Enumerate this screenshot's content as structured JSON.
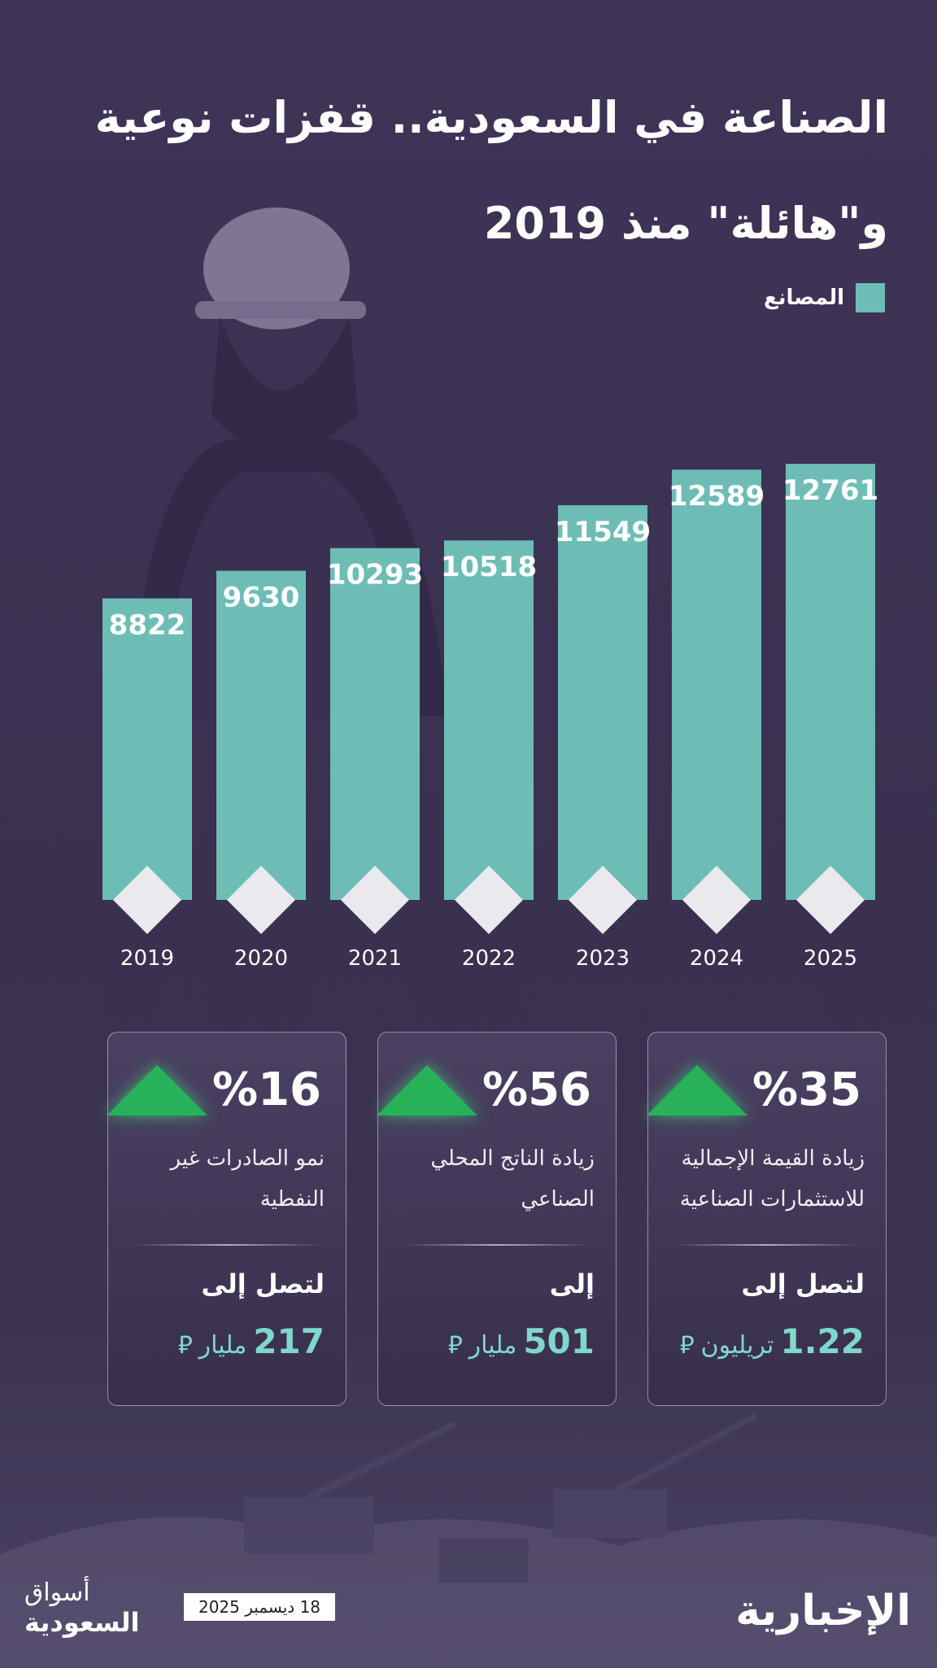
{
  "title_line1": "الصناعة في السعودية.. قفزات نوعية",
  "title_line2": "و\"هائلة\" منذ 2019",
  "legend_label": "المصانع",
  "colors": {
    "bar": "#6dbdb6",
    "background": "#3c3352",
    "accent_green": "#27b25a",
    "amount_text": "#7fd8cb"
  },
  "chart_data": {
    "type": "bar",
    "categories": [
      "2019",
      "2020",
      "2021",
      "2022",
      "2023",
      "2024",
      "2025"
    ],
    "series": [
      {
        "name": "المصانع",
        "values": [
          8822,
          9630,
          10293,
          10518,
          11549,
          12589,
          12761
        ]
      }
    ],
    "title": "الصناعة في السعودية.. قفزات نوعية و\"هائلة\" منذ 2019",
    "xlabel": "",
    "ylabel": "",
    "ylim": [
      0,
      12761
    ],
    "grid": false,
    "legend_position": "top-right"
  },
  "cards": [
    {
      "percent": "%35",
      "desc": "زيادة القيمة الإجمالية للاستثمارات الصناعية",
      "reach": "لتصل إلى",
      "amount": "1.22",
      "unit": "تريليون"
    },
    {
      "percent": "%56",
      "desc": "زيادة الناتج المحلي الصناعي",
      "reach": "إلى",
      "amount": "501",
      "unit": "مليار"
    },
    {
      "percent": "%16",
      "desc": "نمو الصادرات غير النفطية",
      "reach": "لتصل إلى",
      "amount": "217",
      "unit": "مليار"
    }
  ],
  "date": "18 ديسمبر 2025",
  "brand_left_line1": "أسواق",
  "brand_left_line2": "السعودية",
  "brand_right": "الإخبارية"
}
